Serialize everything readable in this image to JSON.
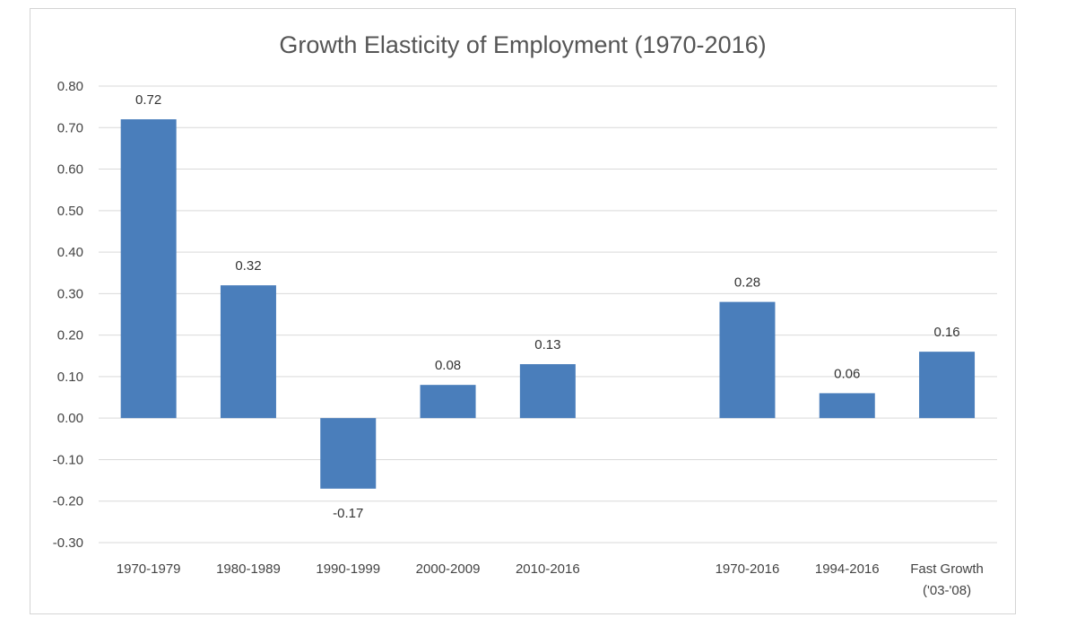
{
  "chart_data": {
    "type": "bar",
    "title": "Growth Elasticity of Employment (1970-2016)",
    "xlabel": "",
    "ylabel": "",
    "ylim": [
      -0.3,
      0.8
    ],
    "yticks": [
      "0.80",
      "0.70",
      "0.60",
      "0.50",
      "0.40",
      "0.30",
      "0.20",
      "0.10",
      "0.00",
      "-0.10",
      "-0.20",
      "-0.30"
    ],
    "grid": true,
    "legend": "none",
    "bar_color": "#4a7ebb",
    "categories": [
      [
        "1970-1979"
      ],
      [
        "1980-1989"
      ],
      [
        "1990-1999"
      ],
      [
        "2000-2009"
      ],
      [
        "2010-2016"
      ],
      [
        ""
      ],
      [
        "1970-2016"
      ],
      [
        "1994-2016"
      ],
      [
        "Fast Growth",
        "('03-'08)"
      ]
    ],
    "values": [
      0.72,
      0.32,
      -0.17,
      0.08,
      0.13,
      null,
      0.28,
      0.06,
      0.16
    ],
    "data_labels": [
      "0.72",
      "0.32",
      "-0.17",
      "0.08",
      "0.13",
      "",
      "0.28",
      "0.06",
      "0.16"
    ]
  }
}
